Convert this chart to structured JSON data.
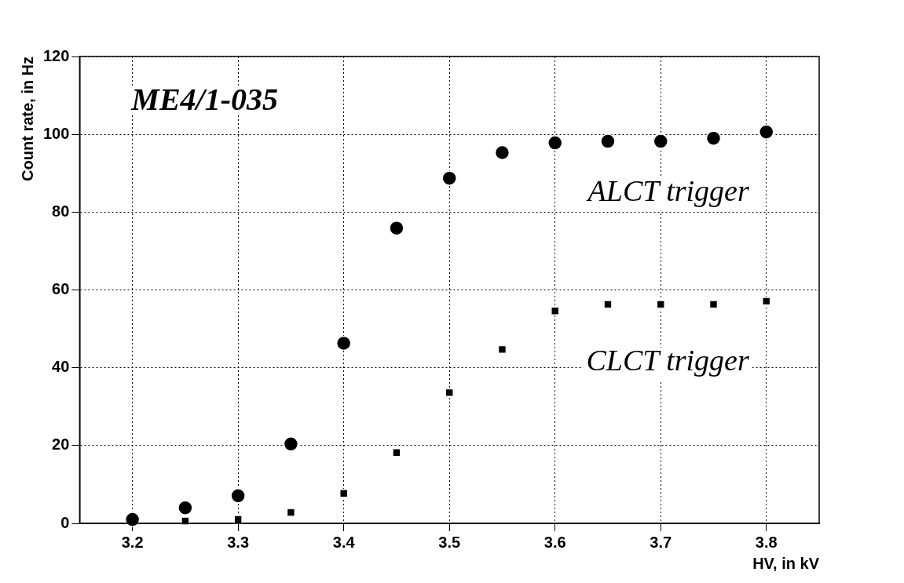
{
  "chart_data": {
    "type": "scatter",
    "xlabel": "HV, in kV",
    "ylabel": "Count rate, in Hz",
    "annotations": [
      "ME4/1-035"
    ],
    "x": [
      3.2,
      3.25,
      3.3,
      3.35,
      3.4,
      3.45,
      3.5,
      3.55,
      3.6,
      3.65,
      3.7,
      3.75,
      3.8
    ],
    "series": [
      {
        "name": "ALCT trigger",
        "color": "#000000",
        "marker": "circle",
        "values": [
          1.0,
          4.0,
          7.1,
          20.4,
          46.3,
          75.9,
          88.7,
          95.3,
          97.8,
          98.2,
          98.2,
          99.0,
          100.6
        ]
      },
      {
        "name": "CLCT trigger",
        "color": "#000000",
        "marker": "square",
        "values": [
          null,
          0.6,
          1.0,
          2.8,
          7.7,
          18.2,
          33.6,
          44.7,
          54.6,
          56.3,
          56.3,
          56.3,
          57.1
        ]
      }
    ],
    "xlim": [
      3.15,
      3.85
    ],
    "xticks": [
      3.2,
      3.3,
      3.4,
      3.5,
      3.6,
      3.7,
      3.8
    ],
    "ylim": [
      0,
      120
    ],
    "yticks": [
      0,
      20,
      40,
      60,
      80,
      100,
      120
    ],
    "grid": true,
    "legend": false
  }
}
